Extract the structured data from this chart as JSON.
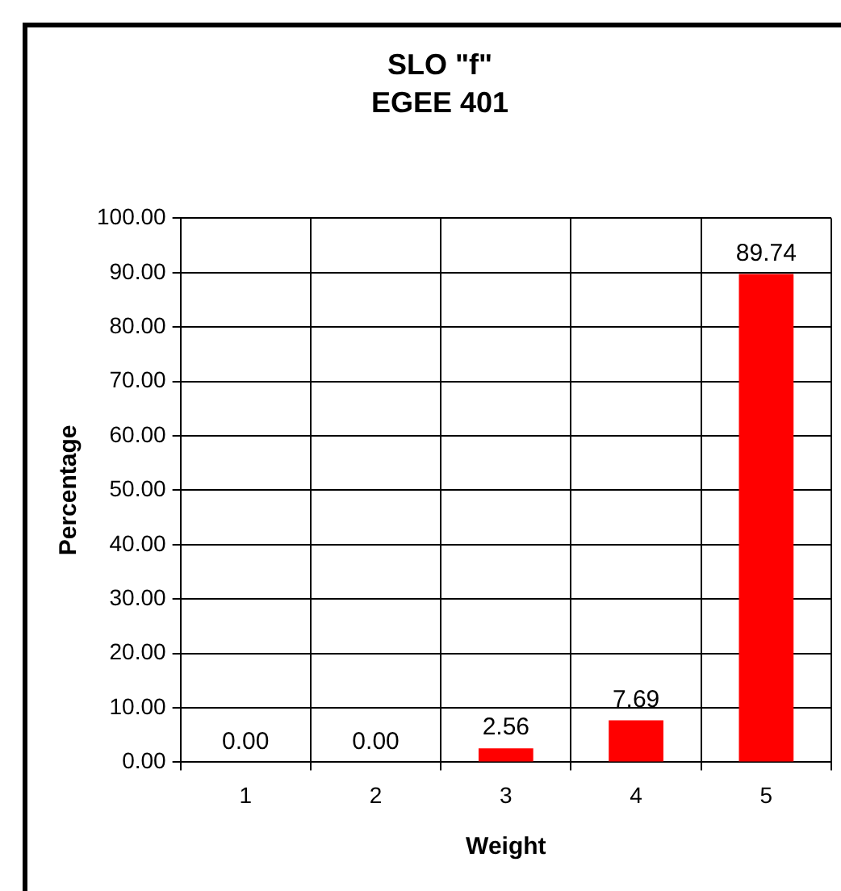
{
  "chart_data": {
    "type": "bar",
    "title": "SLO \"f\"",
    "subtitle": "EGEE 401",
    "xlabel": "Weight",
    "ylabel": "Percentage",
    "categories": [
      "1",
      "2",
      "3",
      "4",
      "5"
    ],
    "values": [
      0,
      0,
      2.56,
      7.69,
      89.74
    ],
    "value_labels": [
      "0.00",
      "0.00",
      "2.56",
      "7.69",
      "89.74"
    ],
    "color": "#ff0000",
    "ylim": [
      0,
      100
    ],
    "yticks": [
      {
        "value": 0,
        "label": "0.00"
      },
      {
        "value": 10,
        "label": "10.00"
      },
      {
        "value": 20,
        "label": "20.00"
      },
      {
        "value": 30,
        "label": "30.00"
      },
      {
        "value": 40,
        "label": "40.00"
      },
      {
        "value": 50,
        "label": "50.00"
      },
      {
        "value": 60,
        "label": "60.00"
      },
      {
        "value": 70,
        "label": "70.00"
      },
      {
        "value": 80,
        "label": "80.00"
      },
      {
        "value": 90,
        "label": "90.00"
      },
      {
        "value": 100,
        "label": "100.00"
      }
    ],
    "grid": true,
    "legend": false
  }
}
